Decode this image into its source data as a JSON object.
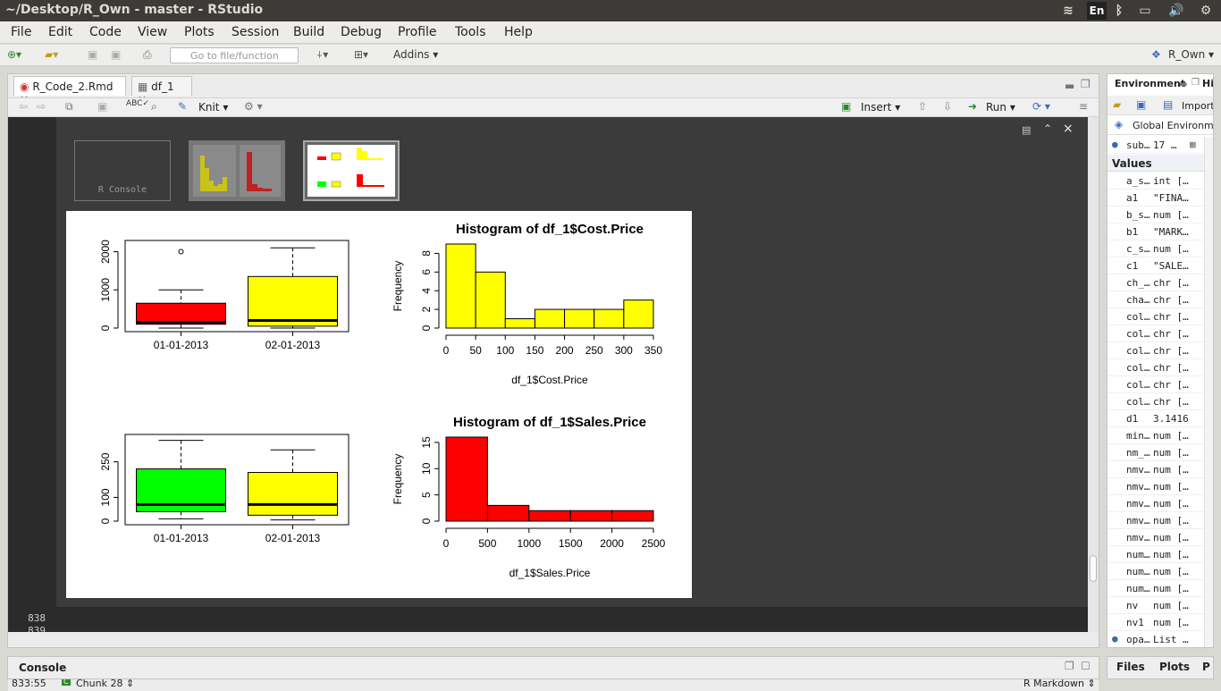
{
  "window": {
    "title": "~/Desktop/R_Own - master - RStudio"
  },
  "tray": {
    "lang": "En"
  },
  "menu": [
    "File",
    "Edit",
    "Code",
    "View",
    "Plots",
    "Session",
    "Build",
    "Debug",
    "Profile",
    "Tools",
    "Help"
  ],
  "toolbar": {
    "goto_placeholder": "Go to file/function",
    "addins": "Addins",
    "project": "R_Own"
  },
  "tabs": [
    {
      "label": "R_Code_2.Rmd"
    },
    {
      "label": "df_1"
    }
  ],
  "editor_toolbar": {
    "knit": "Knit",
    "insert": "Insert",
    "run": "Run"
  },
  "thumbnails": {
    "console_label": "R Console"
  },
  "gutter": {
    "line1": "838",
    "line2": "839"
  },
  "status": {
    "position": "833:55",
    "chunk": "Chunk 28",
    "mode": "R Markdown"
  },
  "console": {
    "label": "Console"
  },
  "environment": {
    "tab": "Environment",
    "tab2": "Hi",
    "import": "Import",
    "scope": "Global Environm",
    "data_row": {
      "name": "sub…",
      "value": "17 …"
    },
    "values_header": "Values",
    "rows": [
      {
        "name": "a_s…",
        "value": "int […"
      },
      {
        "name": "a1",
        "value": "\"FINA…"
      },
      {
        "name": "b_s…",
        "value": "num […"
      },
      {
        "name": "b1",
        "value": "\"MARK…"
      },
      {
        "name": "c_s…",
        "value": "num […"
      },
      {
        "name": "c1",
        "value": "\"SALE…"
      },
      {
        "name": "ch_…",
        "value": "chr […"
      },
      {
        "name": "cha…",
        "value": "chr […"
      },
      {
        "name": "col…",
        "value": "chr […"
      },
      {
        "name": "col…",
        "value": "chr […"
      },
      {
        "name": "col…",
        "value": "chr […"
      },
      {
        "name": "col…",
        "value": "chr […"
      },
      {
        "name": "col…",
        "value": "chr […"
      },
      {
        "name": "col…",
        "value": "chr […"
      },
      {
        "name": "d1",
        "value": "3.1416"
      },
      {
        "name": "min…",
        "value": "num […"
      },
      {
        "name": "nm_…",
        "value": "num […"
      },
      {
        "name": "nmv…",
        "value": "num […"
      },
      {
        "name": "nmv…",
        "value": "num […"
      },
      {
        "name": "nmv…",
        "value": "num […"
      },
      {
        "name": "nmv…",
        "value": "num […"
      },
      {
        "name": "nmv…",
        "value": "num […"
      },
      {
        "name": "num…",
        "value": "num […"
      },
      {
        "name": "num…",
        "value": "num […"
      },
      {
        "name": "num…",
        "value": "num […"
      },
      {
        "name": "nv",
        "value": "num […"
      },
      {
        "name": "nv1",
        "value": "num […"
      },
      {
        "name": "opa…",
        "value": "List …"
      }
    ]
  },
  "right_tabs": {
    "files": "Files",
    "plots": "Plots",
    "p": "P"
  },
  "chart_data": [
    {
      "type": "box",
      "categories": [
        "01-01-2013",
        "02-01-2013"
      ],
      "colors": [
        "#ff0000",
        "#ffff00"
      ],
      "boxes": [
        {
          "min": 0,
          "q1": 100,
          "median": 150,
          "q3": 650,
          "max": 1000,
          "outliers": [
            2000
          ]
        },
        {
          "min": 0,
          "q1": 50,
          "median": 200,
          "q3": 1350,
          "max": 2100,
          "outliers": []
        }
      ],
      "yticks": [
        0,
        1000,
        2000
      ],
      "ylim": [
        0,
        2200
      ]
    },
    {
      "type": "bar",
      "title": "Histogram of df_1$Cost.Price",
      "xlabel": "df_1$Cost.Price",
      "ylabel": "Frequency",
      "bin_edges": [
        0,
        50,
        100,
        150,
        200,
        250,
        300,
        350
      ],
      "values": [
        9,
        6,
        1,
        2,
        2,
        2,
        3
      ],
      "xticks": [
        0,
        50,
        100,
        150,
        200,
        250,
        300,
        350
      ],
      "yticks": [
        0,
        2,
        4,
        6,
        8
      ],
      "ylim": [
        0,
        9
      ],
      "color": "#ffff00"
    },
    {
      "type": "box",
      "categories": [
        "01-01-2013",
        "02-01-2013"
      ],
      "colors": [
        "#00ff00",
        "#ffff00"
      ],
      "boxes": [
        {
          "min": 10,
          "q1": 40,
          "median": 70,
          "q3": 220,
          "max": 340,
          "outliers": []
        },
        {
          "min": 5,
          "q1": 25,
          "median": 70,
          "q3": 205,
          "max": 300,
          "outliers": []
        }
      ],
      "yticks": [
        0,
        100,
        250
      ],
      "ylim": [
        0,
        350
      ]
    },
    {
      "type": "bar",
      "title": "Histogram of df_1$Sales.Price",
      "xlabel": "df_1$Sales.Price",
      "ylabel": "Frequency",
      "bin_edges": [
        0,
        500,
        1000,
        1500,
        2000,
        2500
      ],
      "values": [
        16,
        3,
        2,
        2,
        2
      ],
      "xticks": [
        0,
        500,
        1000,
        1500,
        2000,
        2500
      ],
      "yticks": [
        0,
        5,
        10,
        15
      ],
      "ylim": [
        0,
        16
      ],
      "color": "#ff0000"
    }
  ]
}
